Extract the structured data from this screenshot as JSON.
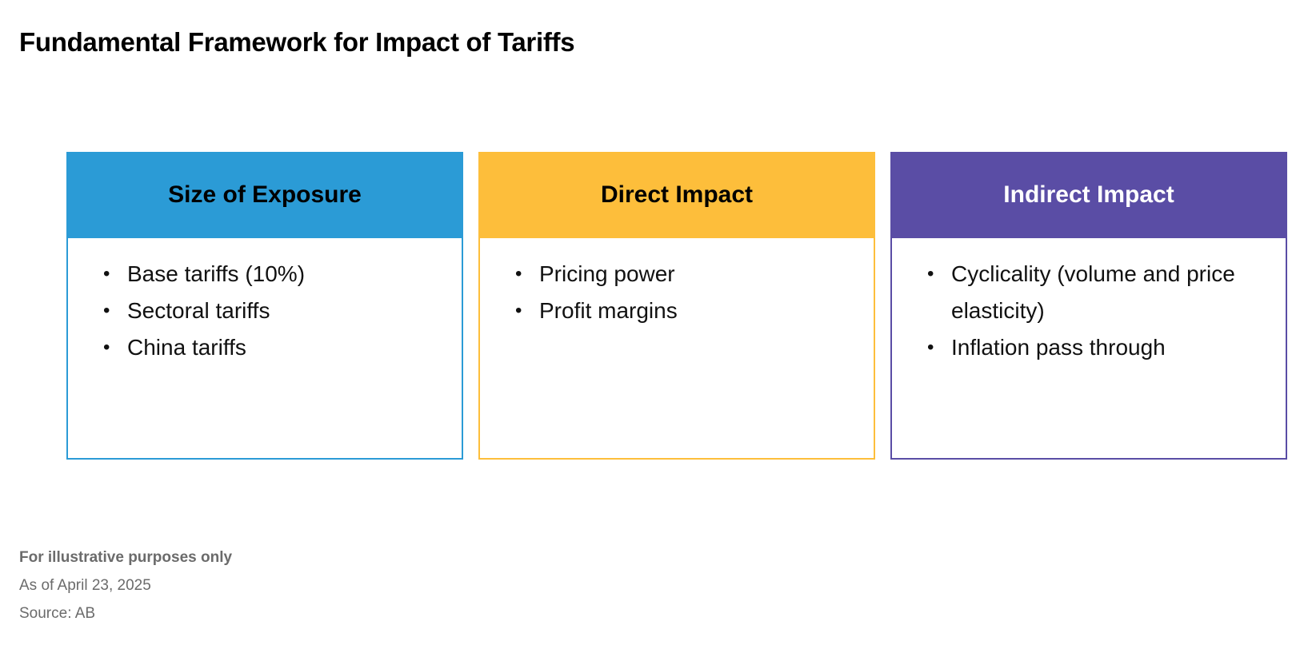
{
  "title": "Fundamental Framework for Impact of Tariffs",
  "boxes": [
    {
      "title": "Size of Exposure",
      "header_color": "#2B9BD6",
      "border_color": "#2B9BD6",
      "title_color": "#000000",
      "items": [
        "Base tariffs (10%)",
        "Sectoral tariffs",
        "China tariffs"
      ]
    },
    {
      "title": "Direct Impact",
      "header_color": "#FDBE3B",
      "border_color": "#FDBE3B",
      "title_color": "#000000",
      "items": [
        "Pricing power",
        "Profit margins"
      ]
    },
    {
      "title": "Indirect Impact",
      "header_color": "#5A4DA5",
      "border_color": "#5A4DA5",
      "title_color": "#FFFFFF",
      "items": [
        "Cyclicality (volume and price elasticity)",
        "Inflation pass through"
      ]
    }
  ],
  "footnotes": {
    "illustrative": "For illustrative purposes only",
    "date": "As of April 23, 2025",
    "source": "Source: AB"
  }
}
